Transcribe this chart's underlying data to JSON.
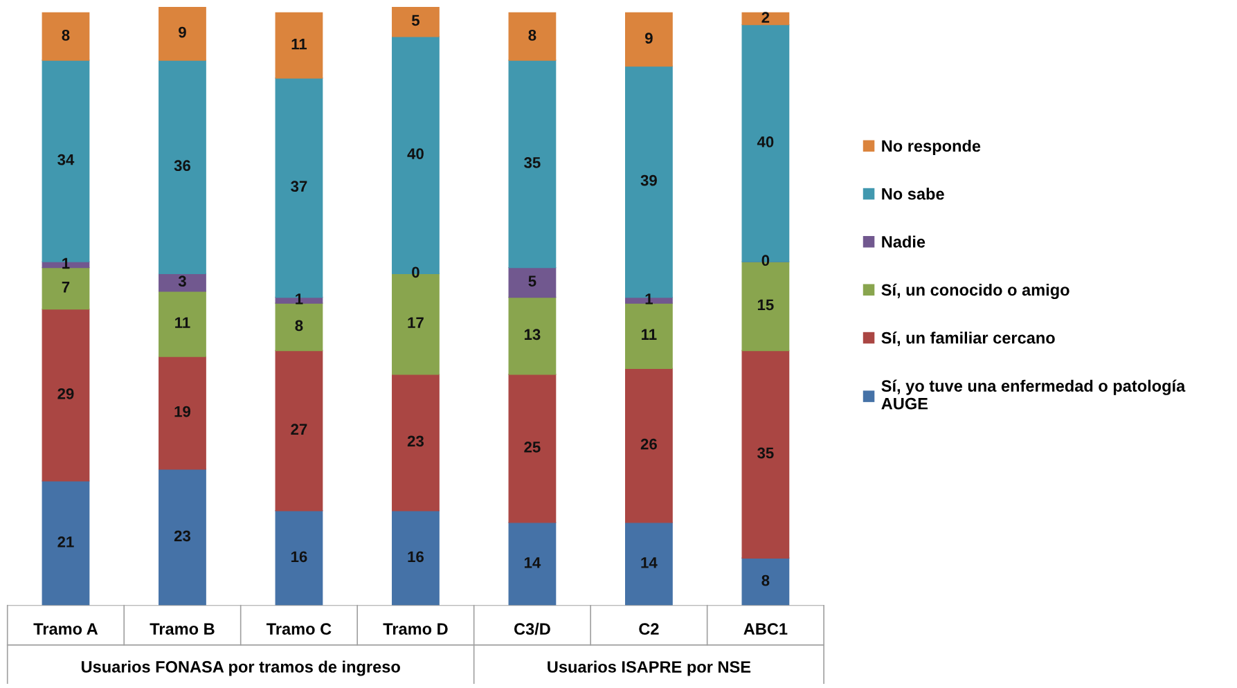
{
  "chart_data": {
    "type": "bar",
    "stacked": true,
    "data_labels": true,
    "legend": "right",
    "grid": false,
    "tick_labels": "x",
    "categories": [
      "Tramo A",
      "Tramo B",
      "Tramo C",
      "Tramo D",
      "C3/D",
      "C2",
      "ABC1"
    ],
    "annotations": [
      "Usuarios FONASA por tramos de ingreso",
      "Usuarios ISAPRE por NSE"
    ],
    "series": [
      {
        "name": "Sí, yo tuve una enfermedad o patología AUGE",
        "color": "#4572a7",
        "values": [
          21,
          23,
          16,
          16,
          14,
          14,
          8
        ]
      },
      {
        "name": "Sí, un familiar cercano",
        "color": "#aa4643",
        "values": [
          29,
          19,
          27,
          23,
          25,
          26,
          35
        ]
      },
      {
        "name": "Sí, un conocido o amigo",
        "color": "#89a54e",
        "values": [
          7,
          11,
          8,
          17,
          13,
          11,
          15
        ]
      },
      {
        "name": "Nadie",
        "color": "#71588f",
        "values": [
          1,
          3,
          1,
          0,
          5,
          1,
          0
        ]
      },
      {
        "name": "No sabe",
        "color": "#4198af",
        "values": [
          34,
          36,
          37,
          40,
          35,
          39,
          40
        ]
      },
      {
        "name": "No responde",
        "color": "#db843d",
        "values": [
          8,
          9,
          11,
          5,
          8,
          9,
          2
        ]
      }
    ]
  }
}
